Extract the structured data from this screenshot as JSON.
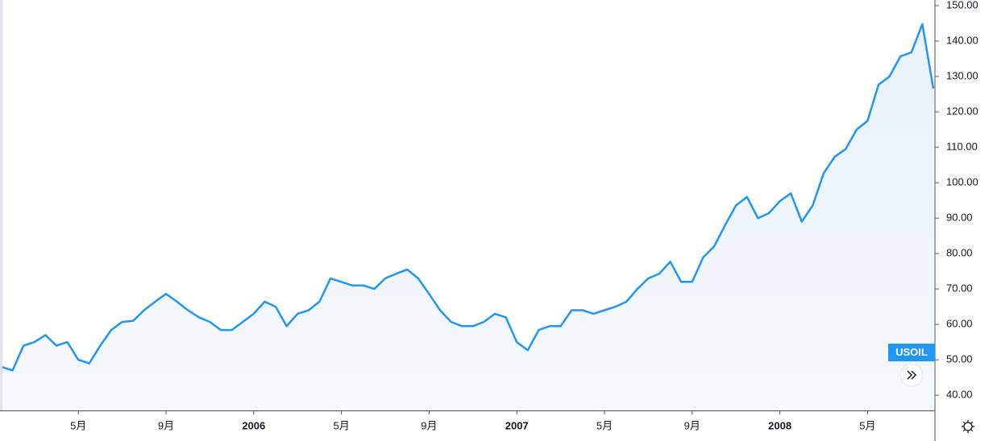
{
  "chart_data": {
    "type": "area",
    "symbol": "USOIL",
    "categories": [
      null,
      null,
      null,
      null,
      null,
      null,
      null,
      "5月",
      null,
      null,
      null,
      null,
      null,
      null,
      null,
      "9月",
      null,
      null,
      null,
      null,
      null,
      null,
      null,
      "2006",
      null,
      null,
      null,
      null,
      null,
      null,
      null,
      "5月",
      null,
      null,
      null,
      null,
      null,
      null,
      null,
      "9月",
      null,
      null,
      null,
      null,
      null,
      null,
      null,
      "2007",
      null,
      null,
      null,
      null,
      null,
      null,
      null,
      "5月",
      null,
      null,
      null,
      null,
      null,
      null,
      null,
      "9月",
      null,
      null,
      null,
      null,
      null,
      null,
      null,
      "2008",
      null,
      null,
      null,
      null,
      null,
      null,
      null,
      "5月",
      null,
      null,
      null,
      null,
      null,
      null
    ],
    "series": [
      {
        "name": "USOIL",
        "color": "#2196f3",
        "values": [
          48,
          47,
          54,
          55,
          57,
          54,
          55,
          50,
          49,
          54,
          58.4,
          60.7,
          61,
          64,
          66.4,
          68.6,
          66.4,
          64,
          62,
          60.7,
          58.4,
          58.4,
          60.7,
          63,
          66.4,
          65,
          59.5,
          63,
          64,
          66.4,
          73,
          72,
          71,
          71,
          70,
          73,
          74.3,
          75.5,
          73,
          68.6,
          64,
          60.7,
          59.5,
          59.5,
          60.7,
          63,
          62,
          55,
          52.7,
          58.4,
          59.5,
          59.5,
          64,
          64,
          63,
          64,
          65,
          66.4,
          70,
          73,
          74.3,
          77.7,
          72,
          72,
          78.9,
          82,
          88,
          93.6,
          96,
          90,
          91.4,
          94.8,
          97,
          89,
          93.6,
          102.7,
          107.3,
          109.5,
          115,
          117.5,
          127.7,
          130,
          135.7,
          136.8,
          144.8,
          126.6
        ]
      }
    ],
    "ylim": [
      35.7,
      151.6
    ],
    "yticks": [
      {
        "value": 40,
        "label": "40.00"
      },
      {
        "value": 50,
        "label": "50.00"
      },
      {
        "value": 60,
        "label": "60.00"
      },
      {
        "value": 70,
        "label": "70.00"
      },
      {
        "value": 80,
        "label": "80.00"
      },
      {
        "value": 90,
        "label": "90.00"
      },
      {
        "value": 100,
        "label": "100.00"
      },
      {
        "value": 110,
        "label": "110.00"
      },
      {
        "value": 120,
        "label": "120.00"
      },
      {
        "value": 130,
        "label": "130.00"
      },
      {
        "value": 140,
        "label": "140.00"
      },
      {
        "value": 150,
        "label": "150.00"
      }
    ]
  }
}
